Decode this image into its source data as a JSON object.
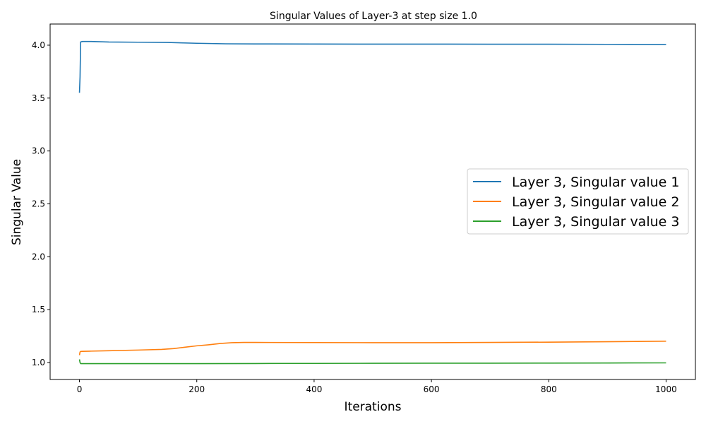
{
  "chart_data": {
    "type": "line",
    "title": "Singular Values of Layer-3 at step size 1.0",
    "xlabel": "Iterations",
    "ylabel": "Singular Value",
    "xlim": [
      -50,
      1050
    ],
    "ylim": [
      0.84,
      4.2
    ],
    "xticks": [
      0,
      200,
      400,
      600,
      800,
      1000
    ],
    "xtick_labels": [
      "0",
      "200",
      "400",
      "600",
      "800",
      "1000"
    ],
    "yticks": [
      1.0,
      1.5,
      2.0,
      2.5,
      3.0,
      3.5,
      4.0
    ],
    "ytick_labels": [
      "1.0",
      "1.5",
      "2.0",
      "2.5",
      "3.0",
      "3.5",
      "4.0"
    ],
    "grid": false,
    "legend_position": "center-right",
    "series": [
      {
        "name": "Layer 3, Singular value 1",
        "color": "#1f77b4",
        "x": [
          0,
          1,
          2,
          5,
          20,
          50,
          100,
          150,
          200,
          250,
          300,
          400,
          500,
          600,
          700,
          800,
          900,
          1000
        ],
        "y": [
          3.55,
          3.7,
          4.03,
          4.035,
          4.035,
          4.03,
          4.028,
          4.026,
          4.018,
          4.013,
          4.012,
          4.011,
          4.01,
          4.01,
          4.009,
          4.009,
          4.008,
          4.007
        ]
      },
      {
        "name": "Layer 3, Singular value 2",
        "color": "#ff7f0e",
        "x": [
          0,
          1,
          2,
          5,
          20,
          50,
          100,
          140,
          160,
          180,
          200,
          220,
          240,
          260,
          280,
          300,
          400,
          500,
          600,
          700,
          800,
          900,
          1000
        ],
        "y": [
          1.07,
          1.1,
          1.105,
          1.106,
          1.108,
          1.112,
          1.118,
          1.124,
          1.132,
          1.145,
          1.158,
          1.168,
          1.18,
          1.188,
          1.19,
          1.19,
          1.189,
          1.188,
          1.188,
          1.19,
          1.193,
          1.197,
          1.202
        ]
      },
      {
        "name": "Layer 3, Singular value 3",
        "color": "#2ca02c",
        "x": [
          0,
          1,
          2,
          5,
          20,
          100,
          200,
          300,
          400,
          500,
          600,
          700,
          800,
          900,
          1000
        ],
        "y": [
          1.03,
          1.0,
          0.99,
          0.99,
          0.99,
          0.99,
          0.99,
          0.991,
          0.992,
          0.993,
          0.994,
          0.994,
          0.995,
          0.996,
          0.997
        ]
      }
    ]
  }
}
